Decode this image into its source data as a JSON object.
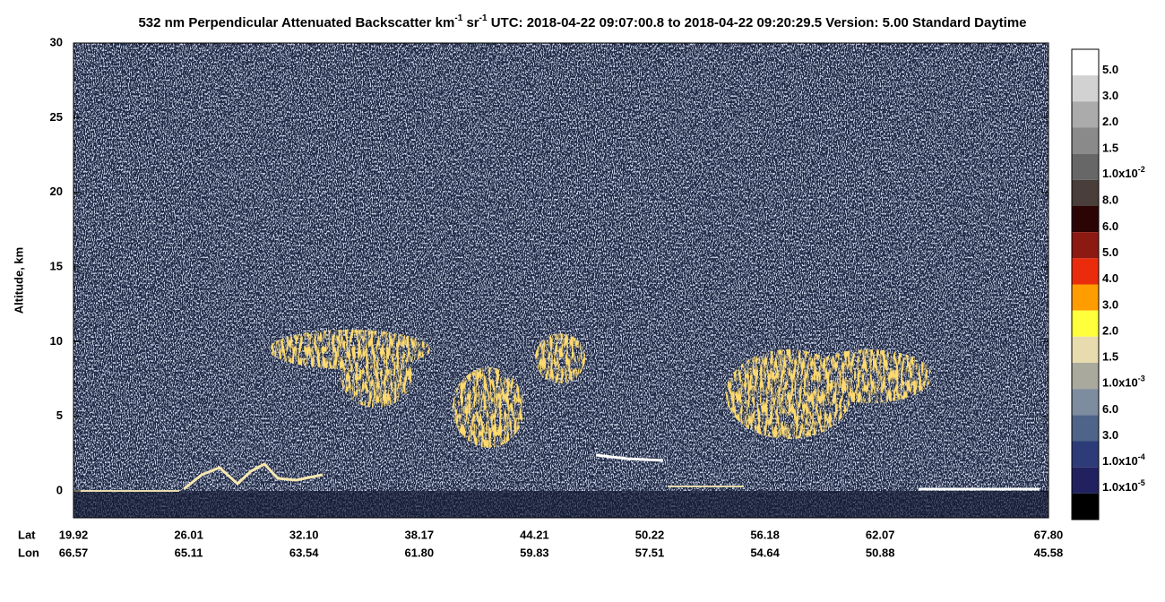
{
  "chart_data": {
    "type": "curtain",
    "title_parts": [
      "532 nm Perpendicular Attenuated Backscatter km",
      "-1",
      " sr",
      "-1",
      "  UTC: 2018-04-22 09:07:00.8 to 2018-04-22 09:20:29.5  Version: 5.00 Standard Daytime"
    ],
    "y_label": "Altitude, km",
    "ylim": [
      -1.8,
      30
    ],
    "yticks": [
      0,
      5,
      10,
      15,
      20,
      25,
      30
    ],
    "x_rows": [
      {
        "name": "Lat",
        "values": [
          "19.92",
          "26.01",
          "32.10",
          "38.17",
          "44.21",
          "50.22",
          "56.18",
          "62.07",
          "67.80"
        ]
      },
      {
        "name": "Lon",
        "values": [
          "66.57",
          "65.11",
          "63.54",
          "61.80",
          "59.83",
          "57.51",
          "54.64",
          "50.88",
          "45.58"
        ]
      }
    ],
    "colorbar": {
      "colors": [
        "#ffffff",
        "#d2d2d2",
        "#ababab",
        "#8a8a8a",
        "#676767",
        "#4a3e3a",
        "#2c0404",
        "#8c1a12",
        "#ea2c0c",
        "#ff9d00",
        "#ffff3c",
        "#e8dbad",
        "#a9aa9d",
        "#7d8c9f",
        "#4f6489",
        "#2d3c79",
        "#22215f",
        "#000000"
      ],
      "labels": [
        "5.0",
        "3.0",
        "2.0",
        "1.5",
        {
          "text": "1.0x10",
          "sup": "-2"
        },
        "8.0",
        "6.0",
        "5.0",
        "4.0",
        "3.0",
        "2.0",
        "1.5",
        {
          "text": "1.0x10",
          "sup": "-3"
        },
        "6.0",
        "3.0",
        {
          "text": "1.0x10",
          "sup": "-4"
        },
        {
          "text": "1.0x10",
          "sup": "-5"
        }
      ]
    }
  }
}
